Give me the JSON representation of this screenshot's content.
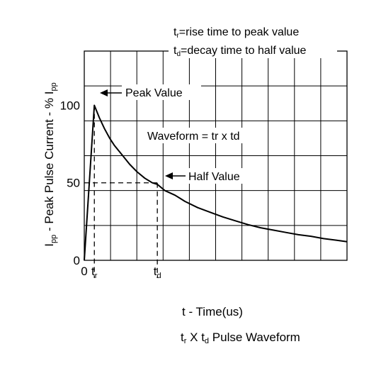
{
  "chart_data": {
    "type": "line",
    "description_legend": [
      {
        "symbol": "t",
        "sub": "r",
        "text": "=rise time to peak value"
      },
      {
        "symbol": "t",
        "sub": "d",
        "text": "=decay time to half value"
      }
    ],
    "ylabel": {
      "p1": "I",
      "s1": "pp",
      "p2": " - Peak Pulse Current - % I",
      "s2": "pp"
    },
    "xlabel": "t - Time(us)",
    "y_ticks": [
      "0",
      "50",
      "100"
    ],
    "x_ticks": [
      {
        "main": "0",
        "sub": ""
      },
      {
        "main": "t",
        "sub": "r"
      },
      {
        "main": "t",
        "sub": "d"
      }
    ],
    "ylim": [
      0,
      135
    ],
    "xlim": [
      0,
      10.43
    ],
    "t_r": 0.4,
    "t_d": 2.9,
    "annotations": {
      "peak": "Peak Value",
      "waveform": "Waveform = tr x td",
      "half": "Half Value"
    },
    "series": [
      {
        "x": [
          0,
          0.4,
          0.6,
          0.8,
          1.0,
          1.2,
          1.5,
          1.8,
          2.1,
          2.4,
          2.7,
          2.9,
          3.2,
          3.6,
          4.0,
          4.5,
          5.0,
          5.5,
          6.0,
          6.5,
          7.0,
          7.5,
          8.0,
          8.5,
          9.0,
          9.5,
          10.0,
          10.43
        ],
        "y": [
          0,
          100,
          92,
          85,
          79,
          74,
          68,
          62,
          57,
          53,
          50,
          49,
          45,
          42,
          38,
          34,
          31,
          28,
          25.5,
          23,
          21,
          19.5,
          18,
          16.5,
          15.5,
          14,
          13,
          12
        ]
      }
    ],
    "grid": true,
    "grid_rows": 6,
    "grid_cols": 10
  },
  "caption": {
    "p1": "t",
    "s1": "r",
    "p2": " X t",
    "s2": "d",
    "p3": " Pulse Waveform"
  }
}
